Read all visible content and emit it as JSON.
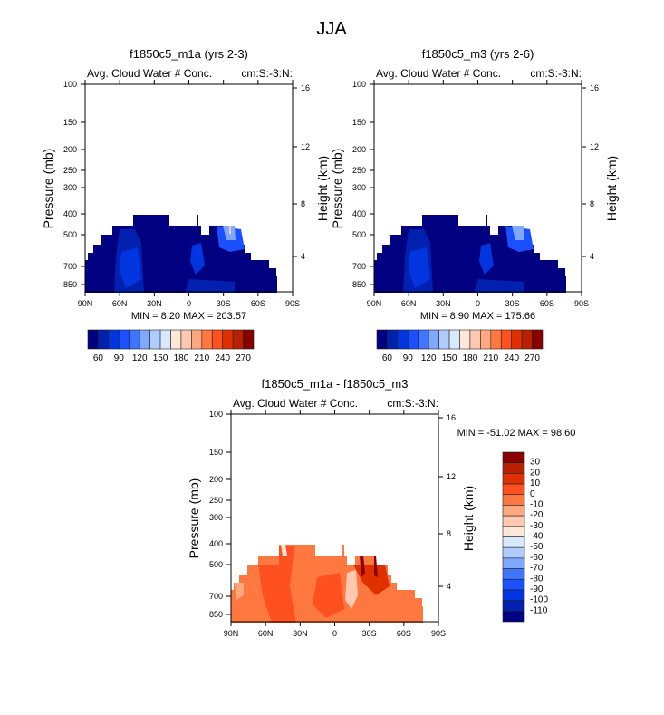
{
  "chart_data": {
    "type": "heatmap",
    "title": "JJA",
    "panels": [
      {
        "id": "m1a",
        "title": "f1850c5_m1a (yrs 2-3)",
        "left_string": "Avg. Cloud Water # Conc.",
        "right_string": "cm:S:-3:N:",
        "ylabel": "Pressure (mb)",
        "ylabel_right": "Height (km)",
        "xticks": [
          "90N",
          "60N",
          "30N",
          "0",
          "30S",
          "60S",
          "90S"
        ],
        "yticks": [
          "100",
          "150",
          "200",
          "250",
          "300",
          "400",
          "500",
          "700",
          "850"
        ],
        "yticks_right": [
          "16",
          "12",
          "8",
          "4"
        ],
        "stats": "MIN =   8.20  MAX = 203.57",
        "min": 8.2,
        "max": 203.57,
        "colorbar_labels": [
          "60",
          "90",
          "120",
          "150",
          "180",
          "210",
          "240",
          "270"
        ],
        "colors": [
          "#000080",
          "#0020b0",
          "#0035e0",
          "#1a50ff",
          "#4075ff",
          "#80a8ff",
          "#b0ccff",
          "#d8e8ff",
          "#ffe8d8",
          "#ffc8b0",
          "#ffa880",
          "#ff7840",
          "#ff5020",
          "#e03000",
          "#b82000",
          "#880000"
        ]
      },
      {
        "id": "m3",
        "title": "f1850c5_m3 (yrs 2-6)",
        "left_string": "Avg. Cloud Water # Conc.",
        "right_string": "cm:S:-3:N:",
        "ylabel": "Pressure (mb)",
        "ylabel_right": "Height (km)",
        "xticks": [
          "90N",
          "60N",
          "30N",
          "0",
          "30S",
          "60S",
          "90S"
        ],
        "yticks": [
          "100",
          "150",
          "200",
          "250",
          "300",
          "400",
          "500",
          "700",
          "850"
        ],
        "yticks_right": [
          "16",
          "12",
          "8",
          "4"
        ],
        "stats": "MIN =   8.90  MAX = 175.66",
        "min": 8.9,
        "max": 175.66,
        "colorbar_labels": [
          "60",
          "90",
          "120",
          "150",
          "180",
          "210",
          "240",
          "270"
        ],
        "colors": [
          "#000080",
          "#0020b0",
          "#0035e0",
          "#1a50ff",
          "#4075ff",
          "#80a8ff",
          "#b0ccff",
          "#d8e8ff",
          "#ffe8d8",
          "#ffc8b0",
          "#ffa880",
          "#ff7840",
          "#ff5020",
          "#e03000",
          "#b82000",
          "#880000"
        ]
      },
      {
        "id": "diff",
        "title": "f1850c5_m1a - f1850c5_m3",
        "left_string": "Avg. Cloud Water # Conc.",
        "right_string": "cm:S:-3:N:",
        "ylabel": "Pressure (mb)",
        "ylabel_right": "Height (km)",
        "xticks": [
          "90N",
          "60N",
          "30N",
          "0",
          "30S",
          "60S",
          "90S"
        ],
        "yticks": [
          "100",
          "150",
          "200",
          "250",
          "300",
          "400",
          "500",
          "700",
          "850"
        ],
        "yticks_right": [
          "16",
          "12",
          "8",
          "4"
        ],
        "stats": "MIN = -51.02  MAX =  98.60",
        "min": -51.02,
        "max": 98.6,
        "colorbar_labels": [
          "30",
          "20",
          "10",
          "0",
          "-10",
          "-20",
          "-30",
          "-40",
          "-50",
          "-60",
          "-70",
          "-80",
          "-90",
          "-100",
          "-110"
        ],
        "colors": [
          "#880000",
          "#b82000",
          "#e03000",
          "#ff5020",
          "#ff7840",
          "#ffa880",
          "#ffc8b0",
          "#ffe8d8",
          "#d8e8ff",
          "#b0ccff",
          "#80a8ff",
          "#4075ff",
          "#1a50ff",
          "#0035e0",
          "#0020b0",
          "#000080"
        ]
      }
    ]
  }
}
